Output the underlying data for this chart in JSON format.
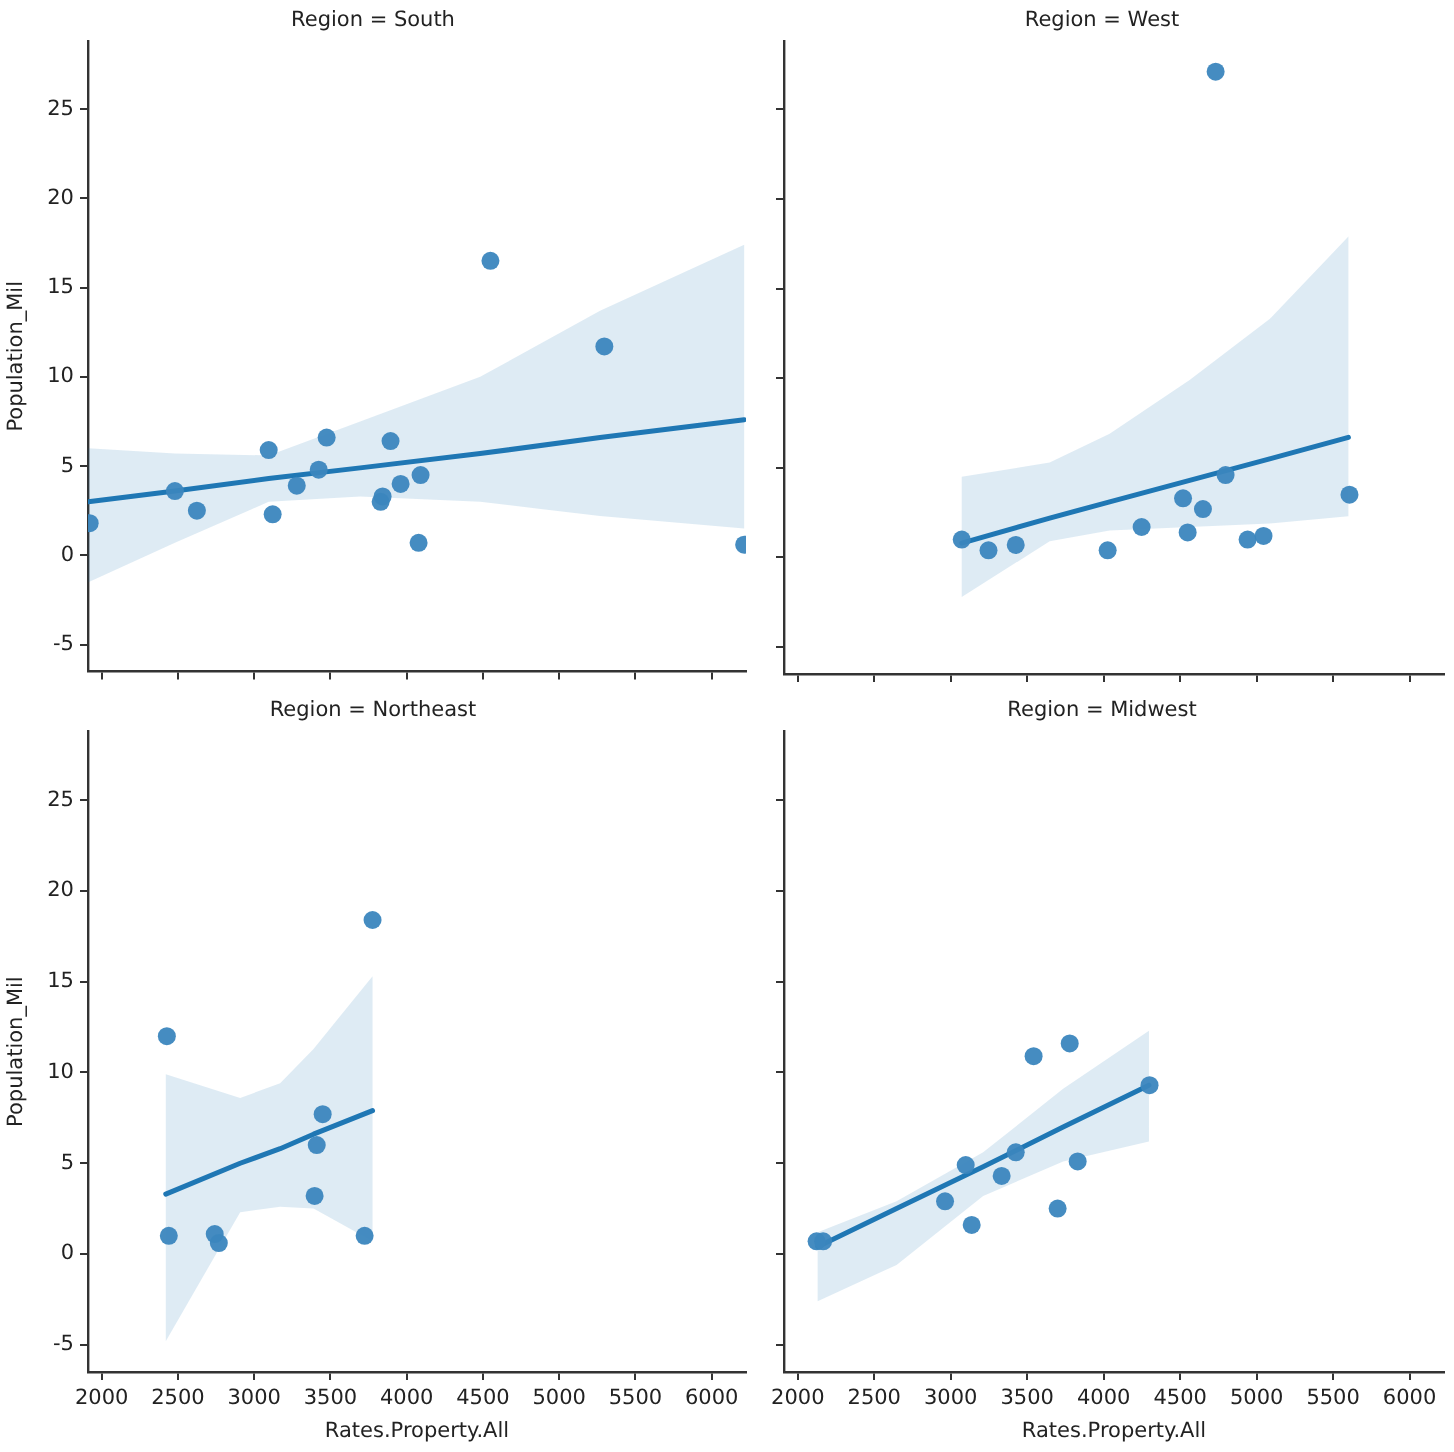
{
  "chart_data": [
    {
      "type": "scatter",
      "title": "Region = South",
      "ylabel": "Population_Mil",
      "xlim": [
        1910,
        6225
      ],
      "ylim": [
        -6.5,
        28.8
      ],
      "xticks": [
        2000,
        2500,
        3000,
        3500,
        4000,
        4500,
        5000,
        5500,
        6000
      ],
      "yticks": [
        -5,
        0,
        5,
        10,
        15,
        20,
        25
      ],
      "tick_labels": "y",
      "series": [
        {
          "color": "#3b86be",
          "marker": "circle",
          "x": [
            1921,
            2480,
            2624,
            3095,
            3121,
            3279,
            3423,
            3475,
            3829,
            3842,
            3894,
            3960,
            4078,
            4091,
            4549,
            5296,
            6213
          ],
          "values": [
            1.8,
            3.6,
            2.5,
            5.9,
            2.3,
            3.9,
            4.8,
            6.6,
            3.0,
            3.3,
            6.4,
            4.0,
            0.7,
            4.5,
            16.5,
            11.7,
            0.6
          ]
        },
        {
          "type": "line",
          "marker": "none",
          "color": "#1f77b4",
          "x": [
            1912,
            2480,
            3095,
            3695,
            4482,
            5268,
            6213
          ],
          "values": [
            3.0,
            3.6,
            4.3,
            4.9,
            5.7,
            6.6,
            7.6
          ],
          "lower": [
            -1.5,
            0.7,
            3.0,
            3.3,
            3.0,
            2.2,
            1.5
          ],
          "upper": [
            6.0,
            5.7,
            5.6,
            7.5,
            10.0,
            13.7,
            17.4
          ]
        }
      ]
    },
    {
      "type": "scatter",
      "title": "Region = West",
      "xlim": [
        1910,
        6225
      ],
      "ylim": [
        -6.5,
        28.8
      ],
      "xticks": [
        2000,
        2500,
        3000,
        3500,
        4000,
        4500,
        5000,
        5500,
        6000
      ],
      "yticks": [
        -5,
        0,
        5,
        10,
        15,
        20,
        25
      ],
      "tick_labels": false,
      "series": [
        {
          "color": "#3b86be",
          "marker": "circle",
          "x": [
            3072,
            3247,
            3425,
            4026,
            4248,
            4519,
            4549,
            4649,
            4732,
            4797,
            4941,
            5045,
            5607
          ],
          "values": [
            1.0,
            0.4,
            0.7,
            0.4,
            1.7,
            3.3,
            1.4,
            2.7,
            27.1,
            4.6,
            1.0,
            1.2,
            3.5
          ]
        },
        {
          "type": "line",
          "marker": "none",
          "color": "#1f77b4",
          "x": [
            3072,
            3647,
            4039,
            4562,
            5085,
            5600
          ],
          "values": [
            0.8,
            2.2,
            3.1,
            4.3,
            5.5,
            6.7
          ],
          "lower": [
            -2.2,
            0.9,
            1.5,
            1.7,
            1.9,
            2.3
          ],
          "upper": [
            4.5,
            5.3,
            6.9,
            9.9,
            13.3,
            17.9
          ]
        }
      ]
    },
    {
      "type": "scatter",
      "title": "Region = Northeast",
      "xlabel": "Rates.Property.All",
      "ylabel": "Population_Mil",
      "xlim": [
        1910,
        6225
      ],
      "ylim": [
        -6.5,
        28.8
      ],
      "xticks": [
        2000,
        2500,
        3000,
        3500,
        4000,
        4500,
        5000,
        5500,
        6000
      ],
      "yticks": [
        -5,
        0,
        5,
        10,
        15,
        20,
        25
      ],
      "series": [
        {
          "color": "#3b86be",
          "marker": "circle",
          "x": [
            2427,
            2440,
            2741,
            2768,
            3396,
            3410,
            3449,
            3724,
            3776
          ],
          "values": [
            12.0,
            1.0,
            1.1,
            0.6,
            3.2,
            6.0,
            7.7,
            1.0,
            18.4
          ]
        },
        {
          "type": "line",
          "marker": "none",
          "color": "#1f77b4",
          "x": [
            2420,
            2908,
            3170,
            3389,
            3776
          ],
          "values": [
            3.3,
            5.0,
            5.8,
            6.6,
            7.9
          ],
          "lower": [
            -4.8,
            2.3,
            2.6,
            2.5,
            0.7
          ],
          "upper": [
            9.9,
            8.6,
            9.4,
            11.3,
            15.3
          ]
        }
      ]
    },
    {
      "type": "scatter",
      "title": "Region = Midwest",
      "xlabel": "Rates.Property.All",
      "xlim": [
        1910,
        6225
      ],
      "ylim": [
        -6.5,
        28.8
      ],
      "xticks": [
        2000,
        2500,
        3000,
        3500,
        4000,
        4500,
        5000,
        5500,
        6000
      ],
      "yticks": [
        -5,
        0,
        5,
        10,
        15,
        20,
        25
      ],
      "tick_labels": "x",
      "series": [
        {
          "color": "#3b86be",
          "marker": "circle",
          "x": [
            2123,
            2166,
            2963,
            3098,
            3137,
            3333,
            3425,
            3542,
            3699,
            3778,
            3830,
            4300
          ],
          "values": [
            0.7,
            0.7,
            2.9,
            4.9,
            1.6,
            4.3,
            5.6,
            10.9,
            2.5,
            11.6,
            5.1,
            9.3
          ]
        },
        {
          "type": "line",
          "marker": "none",
          "color": "#1f77b4",
          "x": [
            2130,
            2646,
            3212,
            3735,
            4296
          ],
          "values": [
            0.4,
            2.5,
            4.8,
            7.0,
            9.3
          ],
          "lower": [
            -2.6,
            -0.6,
            3.2,
            5.1,
            6.2
          ],
          "upper": [
            1.2,
            2.9,
            5.6,
            9.1,
            12.3
          ]
        }
      ]
    }
  ]
}
